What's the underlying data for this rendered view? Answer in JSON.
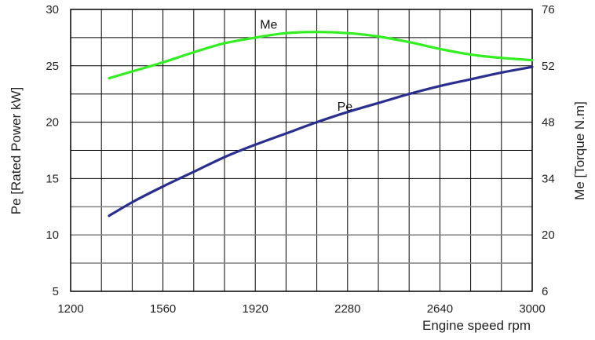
{
  "chart_data": {
    "type": "line",
    "xlabel": "Engine speed rpm",
    "ylabel_left": "Pe [Rated Power kW]",
    "ylabel_right": "Me [Torque N.m]",
    "xlim": [
      1200,
      3000
    ],
    "ylim_left": [
      5,
      30
    ],
    "x_ticks": [
      "1200",
      "1560",
      "1920",
      "2280",
      "2640",
      "3000"
    ],
    "y_ticks_left": [
      "5",
      "10",
      "15",
      "20",
      "25",
      "30"
    ],
    "y_ticks_right": [
      "6",
      "20",
      "34",
      "48",
      "52",
      "76"
    ],
    "grid": true,
    "series": [
      {
        "name": "Me",
        "axis": "right",
        "color": "#33ee22",
        "x": [
          1350,
          1440,
          1560,
          1680,
          1800,
          1920,
          2040,
          2160,
          2280,
          2400,
          2520,
          2640,
          2760,
          2880,
          3000
        ],
        "y_left_scale": [
          23.9,
          24.5,
          25.3,
          26.2,
          27.0,
          27.5,
          27.9,
          28.0,
          27.9,
          27.6,
          27.1,
          26.5,
          26.0,
          25.7,
          25.5
        ]
      },
      {
        "name": "Pe",
        "axis": "left",
        "color": "#2a2f8f",
        "x": [
          1350,
          1440,
          1560,
          1680,
          1800,
          1920,
          2040,
          2160,
          2280,
          2400,
          2520,
          2640,
          2760,
          2880,
          3000
        ],
        "y": [
          11.7,
          12.9,
          14.3,
          15.6,
          16.9,
          18.0,
          19.0,
          20.0,
          20.9,
          21.7,
          22.5,
          23.2,
          23.8,
          24.4,
          24.9
        ]
      }
    ]
  }
}
